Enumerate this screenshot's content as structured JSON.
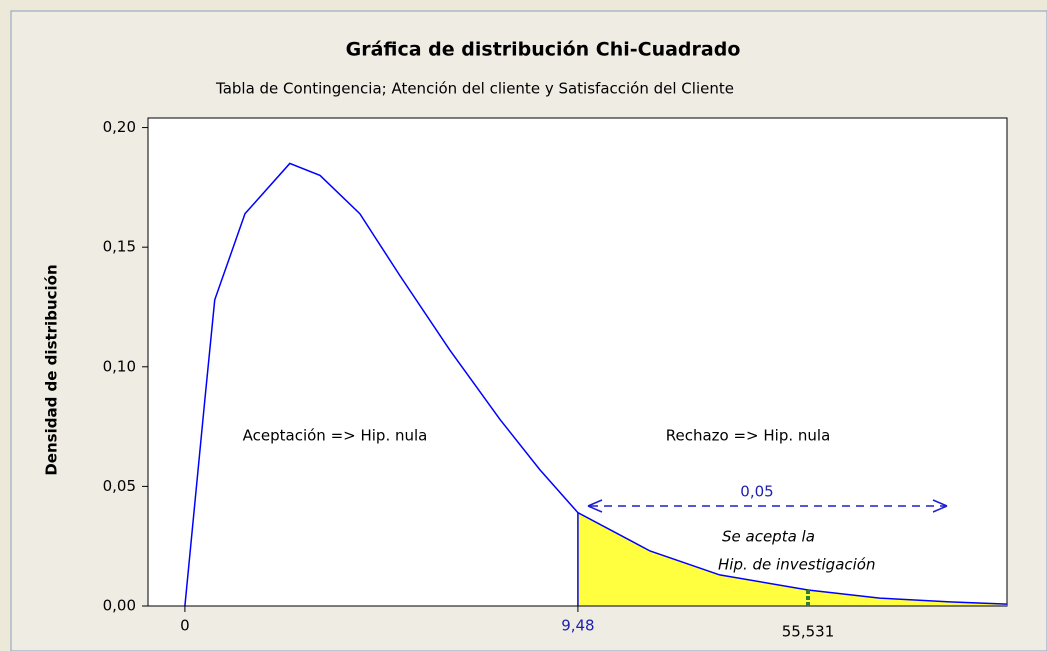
{
  "chart_data": {
    "type": "line",
    "title": "Gráfica de distribución Chi-Cuadrado",
    "subtitle": "Tabla de Contingencia; Atención del cliente y Satisfacción del Cliente",
    "ylabel": "Densidad de distribución",
    "x": [
      0,
      0.48,
      0.72,
      1.45,
      2.53,
      3.26,
      4.22,
      5.19,
      6.39,
      7.6,
      8.56,
      9.48,
      11.22,
      12.9,
      15.03,
      16.76,
      18.45,
      19.83
    ],
    "series": [
      {
        "name": "Chi-Cuadrado",
        "color": "#0000ff",
        "values": [
          0,
          0.086,
          0.128,
          0.164,
          0.185,
          0.18,
          0.164,
          0.138,
          0.107,
          0.078,
          0.057,
          0.039,
          0.023,
          0.013,
          0.0067,
          0.0033,
          0.0017,
          0.0008
        ]
      }
    ],
    "critical": {
      "value": 9.48,
      "label": "9,48"
    },
    "shade_color": "#ffff40",
    "xlim": [
      -0.89,
      19.83
    ],
    "ylim": [
      0,
      0.204
    ],
    "xticks": [
      0,
      {
        "value": 9.48,
        "label": "9,48"
      }
    ],
    "yticks": [
      {
        "value": 0,
        "label": "0,00"
      },
      {
        "value": 0.05,
        "label": "0,05"
      },
      {
        "value": 0.1,
        "label": "0,10"
      },
      {
        "value": 0.15,
        "label": "0,15"
      },
      {
        "value": 0.2,
        "label": "0,20"
      }
    ],
    "annotations": [
      "Aceptación => Hip. nula",
      "Rechazo => Hip. nula",
      "0,05",
      "Se acepta la",
      "Hip. de investigación",
      "55,531"
    ]
  }
}
